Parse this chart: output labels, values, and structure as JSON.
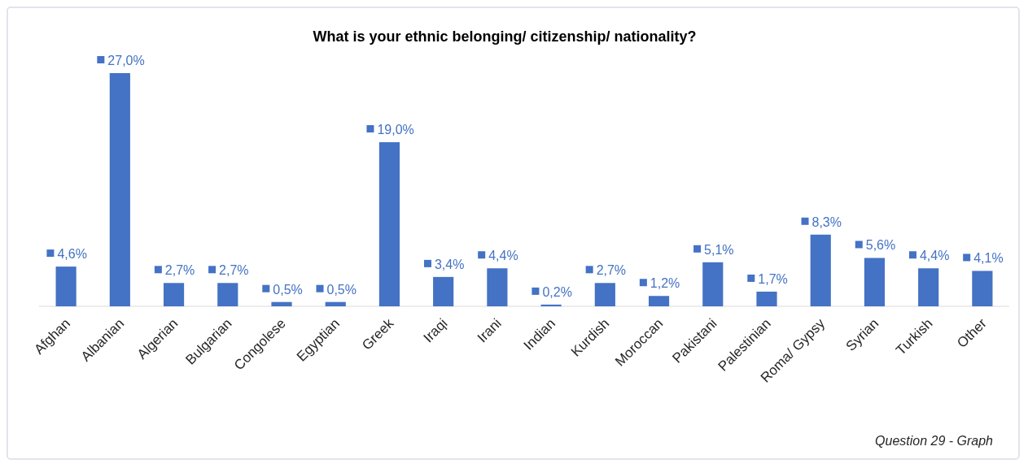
{
  "chart_data": {
    "type": "bar",
    "title": "What is your ethnic belonging/ citizenship/ nationality?",
    "categories": [
      "Afghan",
      "Albanian",
      "Algerian",
      "Bulgarian",
      "Congolese",
      "Egyptian",
      "Greek",
      "Iraqi",
      "Irani",
      "Indian",
      "Kurdish",
      "Moroccan",
      "Pakistani",
      "Palestinian",
      "Roma/ Gypsy",
      "Syrian",
      "Turkish",
      "Other"
    ],
    "values": [
      4.6,
      27.0,
      2.7,
      2.7,
      0.5,
      0.5,
      19.0,
      3.4,
      4.4,
      0.2,
      2.7,
      1.2,
      5.1,
      1.7,
      8.3,
      5.6,
      4.4,
      4.1
    ],
    "value_labels": [
      "4,6%",
      "27,0%",
      "2,7%",
      "2,7%",
      "0,5%",
      "0,5%",
      "19,0%",
      "3,4%",
      "4,4%",
      "0,2%",
      "2,7%",
      "1,2%",
      "5,1%",
      "1,7%",
      "8,3%",
      "5,6%",
      "4,4%",
      "4,1%"
    ],
    "color": "#4472c4",
    "annotations": [
      "Question 29 - Graph"
    ]
  }
}
